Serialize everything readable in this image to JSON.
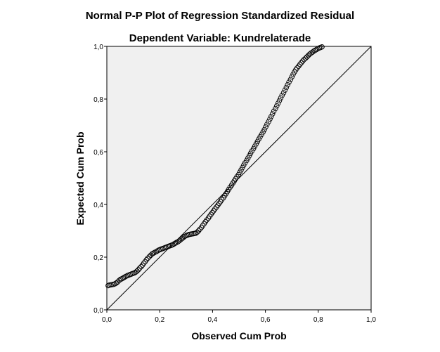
{
  "chart_data": {
    "type": "scatter",
    "title": "Normal P-P Plot of Regression Standardized Residual",
    "subtitle": "Dependent Variable: Kundrelaterade",
    "xlabel": "Observed Cum Prob",
    "ylabel": "Expected Cum Prob",
    "xlim": [
      0,
      1
    ],
    "ylim": [
      0,
      1
    ],
    "x_ticks": [
      "0,0",
      "0,2",
      "0,4",
      "0,6",
      "0,8",
      "1,0"
    ],
    "y_ticks": [
      "0,0",
      "0,2",
      "0,4",
      "0,6",
      "0,8",
      "1,0"
    ],
    "grid": false,
    "reference_line": [
      [
        0,
        0
      ],
      [
        1,
        1
      ]
    ],
    "colors": {
      "plot_background": "#f0f0f0",
      "markers": "#000000"
    },
    "points": [
      [
        0.005,
        0.092
      ],
      [
        0.01,
        0.094
      ],
      [
        0.016,
        0.095
      ],
      [
        0.021,
        0.096
      ],
      [
        0.026,
        0.097
      ],
      [
        0.031,
        0.099
      ],
      [
        0.036,
        0.102
      ],
      [
        0.041,
        0.106
      ],
      [
        0.047,
        0.112
      ],
      [
        0.052,
        0.116
      ],
      [
        0.057,
        0.118
      ],
      [
        0.062,
        0.121
      ],
      [
        0.067,
        0.124
      ],
      [
        0.072,
        0.127
      ],
      [
        0.078,
        0.13
      ],
      [
        0.083,
        0.132
      ],
      [
        0.088,
        0.134
      ],
      [
        0.093,
        0.136
      ],
      [
        0.098,
        0.138
      ],
      [
        0.104,
        0.14
      ],
      [
        0.109,
        0.143
      ],
      [
        0.114,
        0.147
      ],
      [
        0.119,
        0.152
      ],
      [
        0.124,
        0.158
      ],
      [
        0.13,
        0.164
      ],
      [
        0.135,
        0.17
      ],
      [
        0.14,
        0.177
      ],
      [
        0.145,
        0.183
      ],
      [
        0.15,
        0.19
      ],
      [
        0.155,
        0.196
      ],
      [
        0.161,
        0.202
      ],
      [
        0.166,
        0.207
      ],
      [
        0.171,
        0.212
      ],
      [
        0.176,
        0.215
      ],
      [
        0.181,
        0.218
      ],
      [
        0.187,
        0.221
      ],
      [
        0.192,
        0.224
      ],
      [
        0.197,
        0.227
      ],
      [
        0.202,
        0.229
      ],
      [
        0.207,
        0.231
      ],
      [
        0.212,
        0.233
      ],
      [
        0.218,
        0.235
      ],
      [
        0.223,
        0.237
      ],
      [
        0.228,
        0.239
      ],
      [
        0.233,
        0.241
      ],
      [
        0.238,
        0.243
      ],
      [
        0.244,
        0.245
      ],
      [
        0.249,
        0.247
      ],
      [
        0.254,
        0.25
      ],
      [
        0.259,
        0.253
      ],
      [
        0.264,
        0.256
      ],
      [
        0.27,
        0.259
      ],
      [
        0.275,
        0.263
      ],
      [
        0.28,
        0.267
      ],
      [
        0.285,
        0.271
      ],
      [
        0.29,
        0.275
      ],
      [
        0.295,
        0.279
      ],
      [
        0.301,
        0.282
      ],
      [
        0.306,
        0.284
      ],
      [
        0.311,
        0.286
      ],
      [
        0.316,
        0.287
      ],
      [
        0.321,
        0.288
      ],
      [
        0.327,
        0.289
      ],
      [
        0.332,
        0.29
      ],
      [
        0.337,
        0.291
      ],
      [
        0.342,
        0.295
      ],
      [
        0.347,
        0.3
      ],
      [
        0.352,
        0.306
      ],
      [
        0.358,
        0.313
      ],
      [
        0.363,
        0.32
      ],
      [
        0.368,
        0.327
      ],
      [
        0.373,
        0.334
      ],
      [
        0.378,
        0.341
      ],
      [
        0.384,
        0.348
      ],
      [
        0.389,
        0.355
      ],
      [
        0.394,
        0.362
      ],
      [
        0.399,
        0.369
      ],
      [
        0.404,
        0.376
      ],
      [
        0.409,
        0.383
      ],
      [
        0.415,
        0.39
      ],
      [
        0.42,
        0.397
      ],
      [
        0.425,
        0.404
      ],
      [
        0.43,
        0.411
      ],
      [
        0.435,
        0.418
      ],
      [
        0.441,
        0.425
      ],
      [
        0.446,
        0.433
      ],
      [
        0.451,
        0.441
      ],
      [
        0.456,
        0.449
      ],
      [
        0.461,
        0.457
      ],
      [
        0.466,
        0.465
      ],
      [
        0.472,
        0.473
      ],
      [
        0.477,
        0.481
      ],
      [
        0.482,
        0.489
      ],
      [
        0.487,
        0.497
      ],
      [
        0.492,
        0.505
      ],
      [
        0.498,
        0.513
      ],
      [
        0.503,
        0.522
      ],
      [
        0.508,
        0.531
      ],
      [
        0.513,
        0.54
      ],
      [
        0.518,
        0.549
      ],
      [
        0.523,
        0.558
      ],
      [
        0.529,
        0.567
      ],
      [
        0.534,
        0.576
      ],
      [
        0.539,
        0.585
      ],
      [
        0.544,
        0.594
      ],
      [
        0.549,
        0.603
      ],
      [
        0.555,
        0.612
      ],
      [
        0.56,
        0.621
      ],
      [
        0.565,
        0.63
      ],
      [
        0.57,
        0.639
      ],
      [
        0.575,
        0.648
      ],
      [
        0.58,
        0.657
      ],
      [
        0.586,
        0.666
      ],
      [
        0.591,
        0.675
      ],
      [
        0.596,
        0.684
      ],
      [
        0.601,
        0.694
      ],
      [
        0.606,
        0.704
      ],
      [
        0.612,
        0.714
      ],
      [
        0.617,
        0.724
      ],
      [
        0.622,
        0.734
      ],
      [
        0.627,
        0.744
      ],
      [
        0.632,
        0.754
      ],
      [
        0.638,
        0.764
      ],
      [
        0.643,
        0.774
      ],
      [
        0.648,
        0.784
      ],
      [
        0.653,
        0.794
      ],
      [
        0.658,
        0.804
      ],
      [
        0.663,
        0.814
      ],
      [
        0.669,
        0.824
      ],
      [
        0.674,
        0.834
      ],
      [
        0.679,
        0.844
      ],
      [
        0.684,
        0.854
      ],
      [
        0.689,
        0.864
      ],
      [
        0.695,
        0.874
      ],
      [
        0.7,
        0.884
      ],
      [
        0.705,
        0.894
      ],
      [
        0.71,
        0.903
      ],
      [
        0.715,
        0.911
      ],
      [
        0.72,
        0.918
      ],
      [
        0.726,
        0.925
      ],
      [
        0.731,
        0.932
      ],
      [
        0.736,
        0.938
      ],
      [
        0.741,
        0.944
      ],
      [
        0.746,
        0.95
      ],
      [
        0.752,
        0.955
      ],
      [
        0.757,
        0.96
      ],
      [
        0.762,
        0.965
      ],
      [
        0.767,
        0.97
      ],
      [
        0.772,
        0.974
      ],
      [
        0.778,
        0.978
      ],
      [
        0.783,
        0.982
      ],
      [
        0.788,
        0.985
      ],
      [
        0.793,
        0.988
      ],
      [
        0.798,
        0.991
      ],
      [
        0.804,
        0.994
      ],
      [
        0.809,
        0.996
      ],
      [
        0.814,
        0.998
      ]
    ]
  }
}
